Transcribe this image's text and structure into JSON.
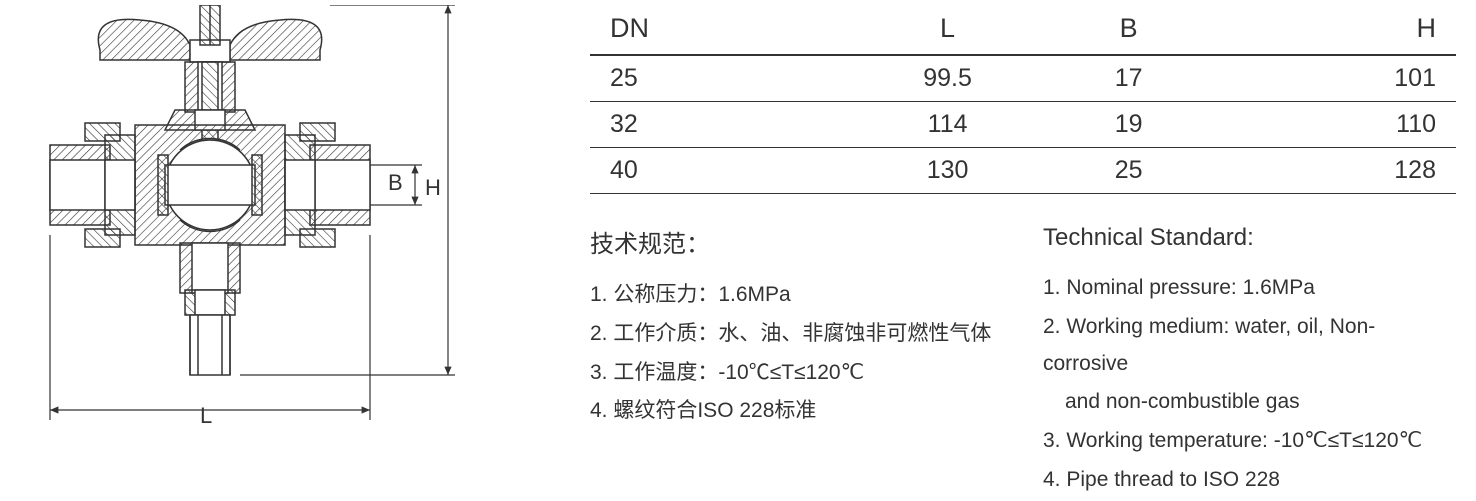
{
  "diagram": {
    "labels": {
      "L": "L",
      "B": "B",
      "H": "H"
    },
    "stroke_color": "#333333",
    "hatch_color": "#333333"
  },
  "table": {
    "columns": [
      "DN",
      "L",
      "B",
      "H"
    ],
    "rows": [
      [
        "25",
        "99.5",
        "17",
        "101"
      ],
      [
        "32",
        "114",
        "19",
        "110"
      ],
      [
        "40",
        "130",
        "25",
        "128"
      ]
    ],
    "header_fontsize": 27,
    "cell_fontsize": 25,
    "border_color": "#333333",
    "header_border_width": 2,
    "row_border_width": 1.5,
    "text_color": "#333333"
  },
  "specs_cn": {
    "heading": "技术规范：",
    "items": [
      "1. 公称压力：1.6MPa",
      "2. 工作介质：水、油、非腐蚀非可燃性气体",
      "3. 工作温度：-10℃≤T≤120℃",
      "4. 螺纹符合ISO 228标准"
    ]
  },
  "specs_en": {
    "heading": "Technical Standard:",
    "items": [
      "1. Nominal pressure: 1.6MPa",
      "2. Working medium: water, oil, Non-corrosive",
      "    and non-combustible gas",
      "3. Working temperature: -10℃≤T≤120℃",
      "4. Pipe thread to ISO 228"
    ],
    "indent_indices": [
      2
    ]
  },
  "style": {
    "background_color": "#ffffff",
    "text_color": "#333333",
    "heading_fontsize": 24,
    "body_fontsize": 21
  }
}
